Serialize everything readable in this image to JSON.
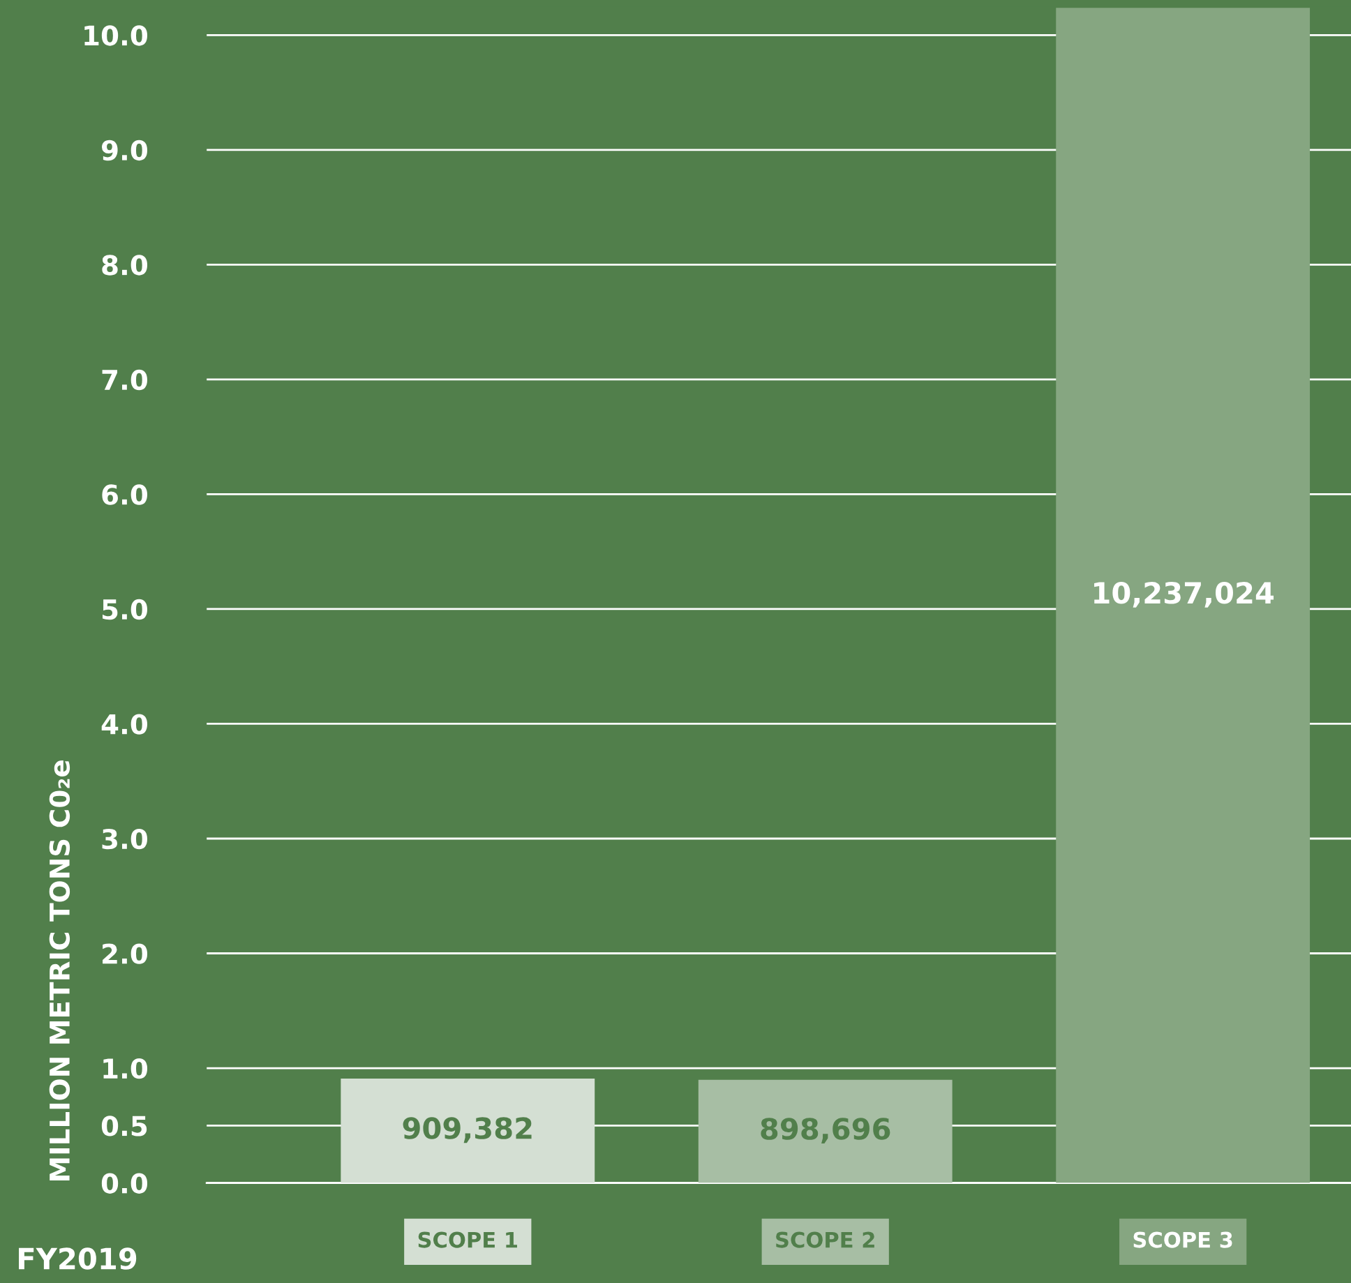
{
  "chart_data": {
    "type": "bar",
    "categories": [
      "SCOPE 1",
      "SCOPE 2",
      "SCOPE 3"
    ],
    "values": [
      0.909382,
      0.898696,
      10.237024
    ],
    "colors": [
      "#d4dfd3",
      "#a7bea4",
      "#86a681"
    ],
    "ylabel": "MILLION METRIC TONS C0₂e",
    "annotations": [
      "FY2019",
      "909,382",
      "898,696",
      "10,237,024"
    ],
    "ylim": [
      0,
      10.25
    ],
    "yticks": [
      {
        "value": 0,
        "label": "0.0"
      },
      0.5,
      {
        "value": 1,
        "label": "1.0"
      },
      {
        "value": 2,
        "label": "2.0"
      },
      {
        "value": 3,
        "label": "3.0"
      },
      {
        "value": 4,
        "label": "4.0"
      },
      {
        "value": 5,
        "label": "5.0"
      },
      {
        "value": 6,
        "label": "6.0"
      },
      {
        "value": 7,
        "label": "7.0"
      },
      {
        "value": 8,
        "label": "8.0"
      },
      {
        "value": 9,
        "label": "9.0"
      },
      {
        "value": 10,
        "label": "10.0"
      }
    ],
    "grid": "y"
  }
}
